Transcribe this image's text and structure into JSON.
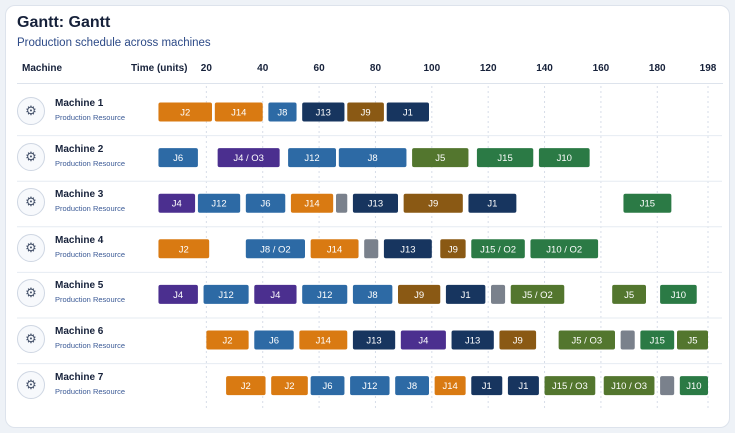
{
  "title": "Gantt: Gantt",
  "subtitle": "Production schedule across machines",
  "headers": {
    "machine": "Machine",
    "time": "Time (units)"
  },
  "colors": {
    "orange": "#d97a12",
    "blue": "#2d6aa5",
    "navy": "#17355f",
    "brown": "#8a5914",
    "purple": "#4b2f8f",
    "green": "#2b7a45",
    "olive": "#53762e",
    "gray": "#7a818c"
  },
  "chart_data": {
    "type": "gantt",
    "x_ticks": [
      20,
      40,
      60,
      80,
      100,
      120,
      140,
      160,
      180,
      198
    ],
    "x_range": [
      0,
      198
    ],
    "grid": true,
    "rows": [
      {
        "machine": "Machine 1",
        "resource": "Production Resource",
        "tasks": [
          {
            "label": "J2",
            "start": 3,
            "end": 22,
            "color": "orange"
          },
          {
            "label": "J14",
            "start": 23,
            "end": 40,
            "color": "orange"
          },
          {
            "label": "J8",
            "start": 42,
            "end": 52,
            "color": "blue"
          },
          {
            "label": "J13",
            "start": 54,
            "end": 69,
            "color": "navy"
          },
          {
            "label": "J9",
            "start": 70,
            "end": 83,
            "color": "brown"
          },
          {
            "label": "J1",
            "start": 84,
            "end": 99,
            "color": "navy"
          }
        ]
      },
      {
        "machine": "Machine 2",
        "resource": "Production Resource",
        "tasks": [
          {
            "label": "J6",
            "start": 3,
            "end": 17,
            "color": "blue"
          },
          {
            "label": "J4 / O3",
            "start": 24,
            "end": 46,
            "color": "purple"
          },
          {
            "label": "J12",
            "start": 49,
            "end": 66,
            "color": "blue"
          },
          {
            "label": "J8",
            "start": 67,
            "end": 91,
            "color": "blue"
          },
          {
            "label": "J5",
            "start": 93,
            "end": 113,
            "color": "olive"
          },
          {
            "label": "J15",
            "start": 116,
            "end": 136,
            "color": "green"
          },
          {
            "label": "J10",
            "start": 138,
            "end": 156,
            "color": "green"
          }
        ]
      },
      {
        "machine": "Machine 3",
        "resource": "Production Resource",
        "tasks": [
          {
            "label": "J4",
            "start": 3,
            "end": 16,
            "color": "purple"
          },
          {
            "label": "J12",
            "start": 17,
            "end": 32,
            "color": "blue"
          },
          {
            "label": "J6",
            "start": 34,
            "end": 48,
            "color": "blue"
          },
          {
            "label": "J14",
            "start": 50,
            "end": 65,
            "color": "orange"
          },
          {
            "label": "",
            "start": 66,
            "end": 70,
            "color": "gray"
          },
          {
            "label": "J13",
            "start": 72,
            "end": 88,
            "color": "navy"
          },
          {
            "label": "J9",
            "start": 90,
            "end": 111,
            "color": "brown"
          },
          {
            "label": "J1",
            "start": 113,
            "end": 130,
            "color": "navy"
          },
          {
            "label": "J15",
            "start": 168,
            "end": 185,
            "color": "green"
          }
        ]
      },
      {
        "machine": "Machine 4",
        "resource": "Production Resource",
        "tasks": [
          {
            "label": "J2",
            "start": 3,
            "end": 21,
            "color": "orange"
          },
          {
            "label": "J8 / O2",
            "start": 34,
            "end": 55,
            "color": "blue"
          },
          {
            "label": "J14",
            "start": 57,
            "end": 74,
            "color": "orange"
          },
          {
            "label": "",
            "start": 76,
            "end": 81,
            "color": "gray"
          },
          {
            "label": "J13",
            "start": 83,
            "end": 100,
            "color": "navy"
          },
          {
            "label": "J9",
            "start": 103,
            "end": 112,
            "color": "brown"
          },
          {
            "label": "J15 / O2",
            "start": 114,
            "end": 133,
            "color": "green"
          },
          {
            "label": "J10 / O2",
            "start": 135,
            "end": 159,
            "color": "green"
          }
        ]
      },
      {
        "machine": "Machine 5",
        "resource": "Production Resource",
        "tasks": [
          {
            "label": "J4",
            "start": 3,
            "end": 17,
            "color": "purple"
          },
          {
            "label": "J12",
            "start": 19,
            "end": 35,
            "color": "blue"
          },
          {
            "label": "J4",
            "start": 37,
            "end": 52,
            "color": "purple"
          },
          {
            "label": "J12",
            "start": 54,
            "end": 70,
            "color": "blue"
          },
          {
            "label": "J8",
            "start": 72,
            "end": 86,
            "color": "blue"
          },
          {
            "label": "J9",
            "start": 88,
            "end": 103,
            "color": "brown"
          },
          {
            "label": "J1",
            "start": 105,
            "end": 119,
            "color": "navy"
          },
          {
            "label": "",
            "start": 121,
            "end": 126,
            "color": "gray"
          },
          {
            "label": "J5 / O2",
            "start": 128,
            "end": 147,
            "color": "olive"
          },
          {
            "label": "J5",
            "start": 164,
            "end": 176,
            "color": "olive"
          },
          {
            "label": "J10",
            "start": 181,
            "end": 194,
            "color": "green"
          }
        ]
      },
      {
        "machine": "Machine 6",
        "resource": "Production Resource",
        "tasks": [
          {
            "label": "J2",
            "start": 20,
            "end": 35,
            "color": "orange"
          },
          {
            "label": "J6",
            "start": 37,
            "end": 51,
            "color": "blue"
          },
          {
            "label": "J14",
            "start": 53,
            "end": 70,
            "color": "orange"
          },
          {
            "label": "J13",
            "start": 72,
            "end": 87,
            "color": "navy"
          },
          {
            "label": "J4",
            "start": 89,
            "end": 105,
            "color": "purple"
          },
          {
            "label": "J13",
            "start": 107,
            "end": 122,
            "color": "navy"
          },
          {
            "label": "J9",
            "start": 124,
            "end": 137,
            "color": "brown"
          },
          {
            "label": "J5 / O3",
            "start": 145,
            "end": 165,
            "color": "olive"
          },
          {
            "label": "",
            "start": 167,
            "end": 172,
            "color": "gray"
          },
          {
            "label": "J15",
            "start": 174,
            "end": 186,
            "color": "green"
          },
          {
            "label": "J5",
            "start": 187,
            "end": 198,
            "color": "olive"
          }
        ]
      },
      {
        "machine": "Machine 7",
        "resource": "Production Resource",
        "tasks": [
          {
            "label": "J2",
            "start": 27,
            "end": 41,
            "color": "orange"
          },
          {
            "label": "J2",
            "start": 43,
            "end": 56,
            "color": "orange"
          },
          {
            "label": "J6",
            "start": 57,
            "end": 69,
            "color": "blue"
          },
          {
            "label": "J12",
            "start": 71,
            "end": 85,
            "color": "blue"
          },
          {
            "label": "J8",
            "start": 87,
            "end": 99,
            "color": "blue"
          },
          {
            "label": "J14",
            "start": 101,
            "end": 112,
            "color": "orange"
          },
          {
            "label": "J1",
            "start": 114,
            "end": 125,
            "color": "navy"
          },
          {
            "label": "J1",
            "start": 127,
            "end": 138,
            "color": "navy"
          },
          {
            "label": "J15 / O3",
            "start": 140,
            "end": 158,
            "color": "olive"
          },
          {
            "label": "J10 / O3",
            "start": 161,
            "end": 179,
            "color": "olive"
          },
          {
            "label": "",
            "start": 181,
            "end": 186,
            "color": "gray"
          },
          {
            "label": "J10",
            "start": 188,
            "end": 198,
            "color": "green"
          }
        ]
      }
    ]
  }
}
